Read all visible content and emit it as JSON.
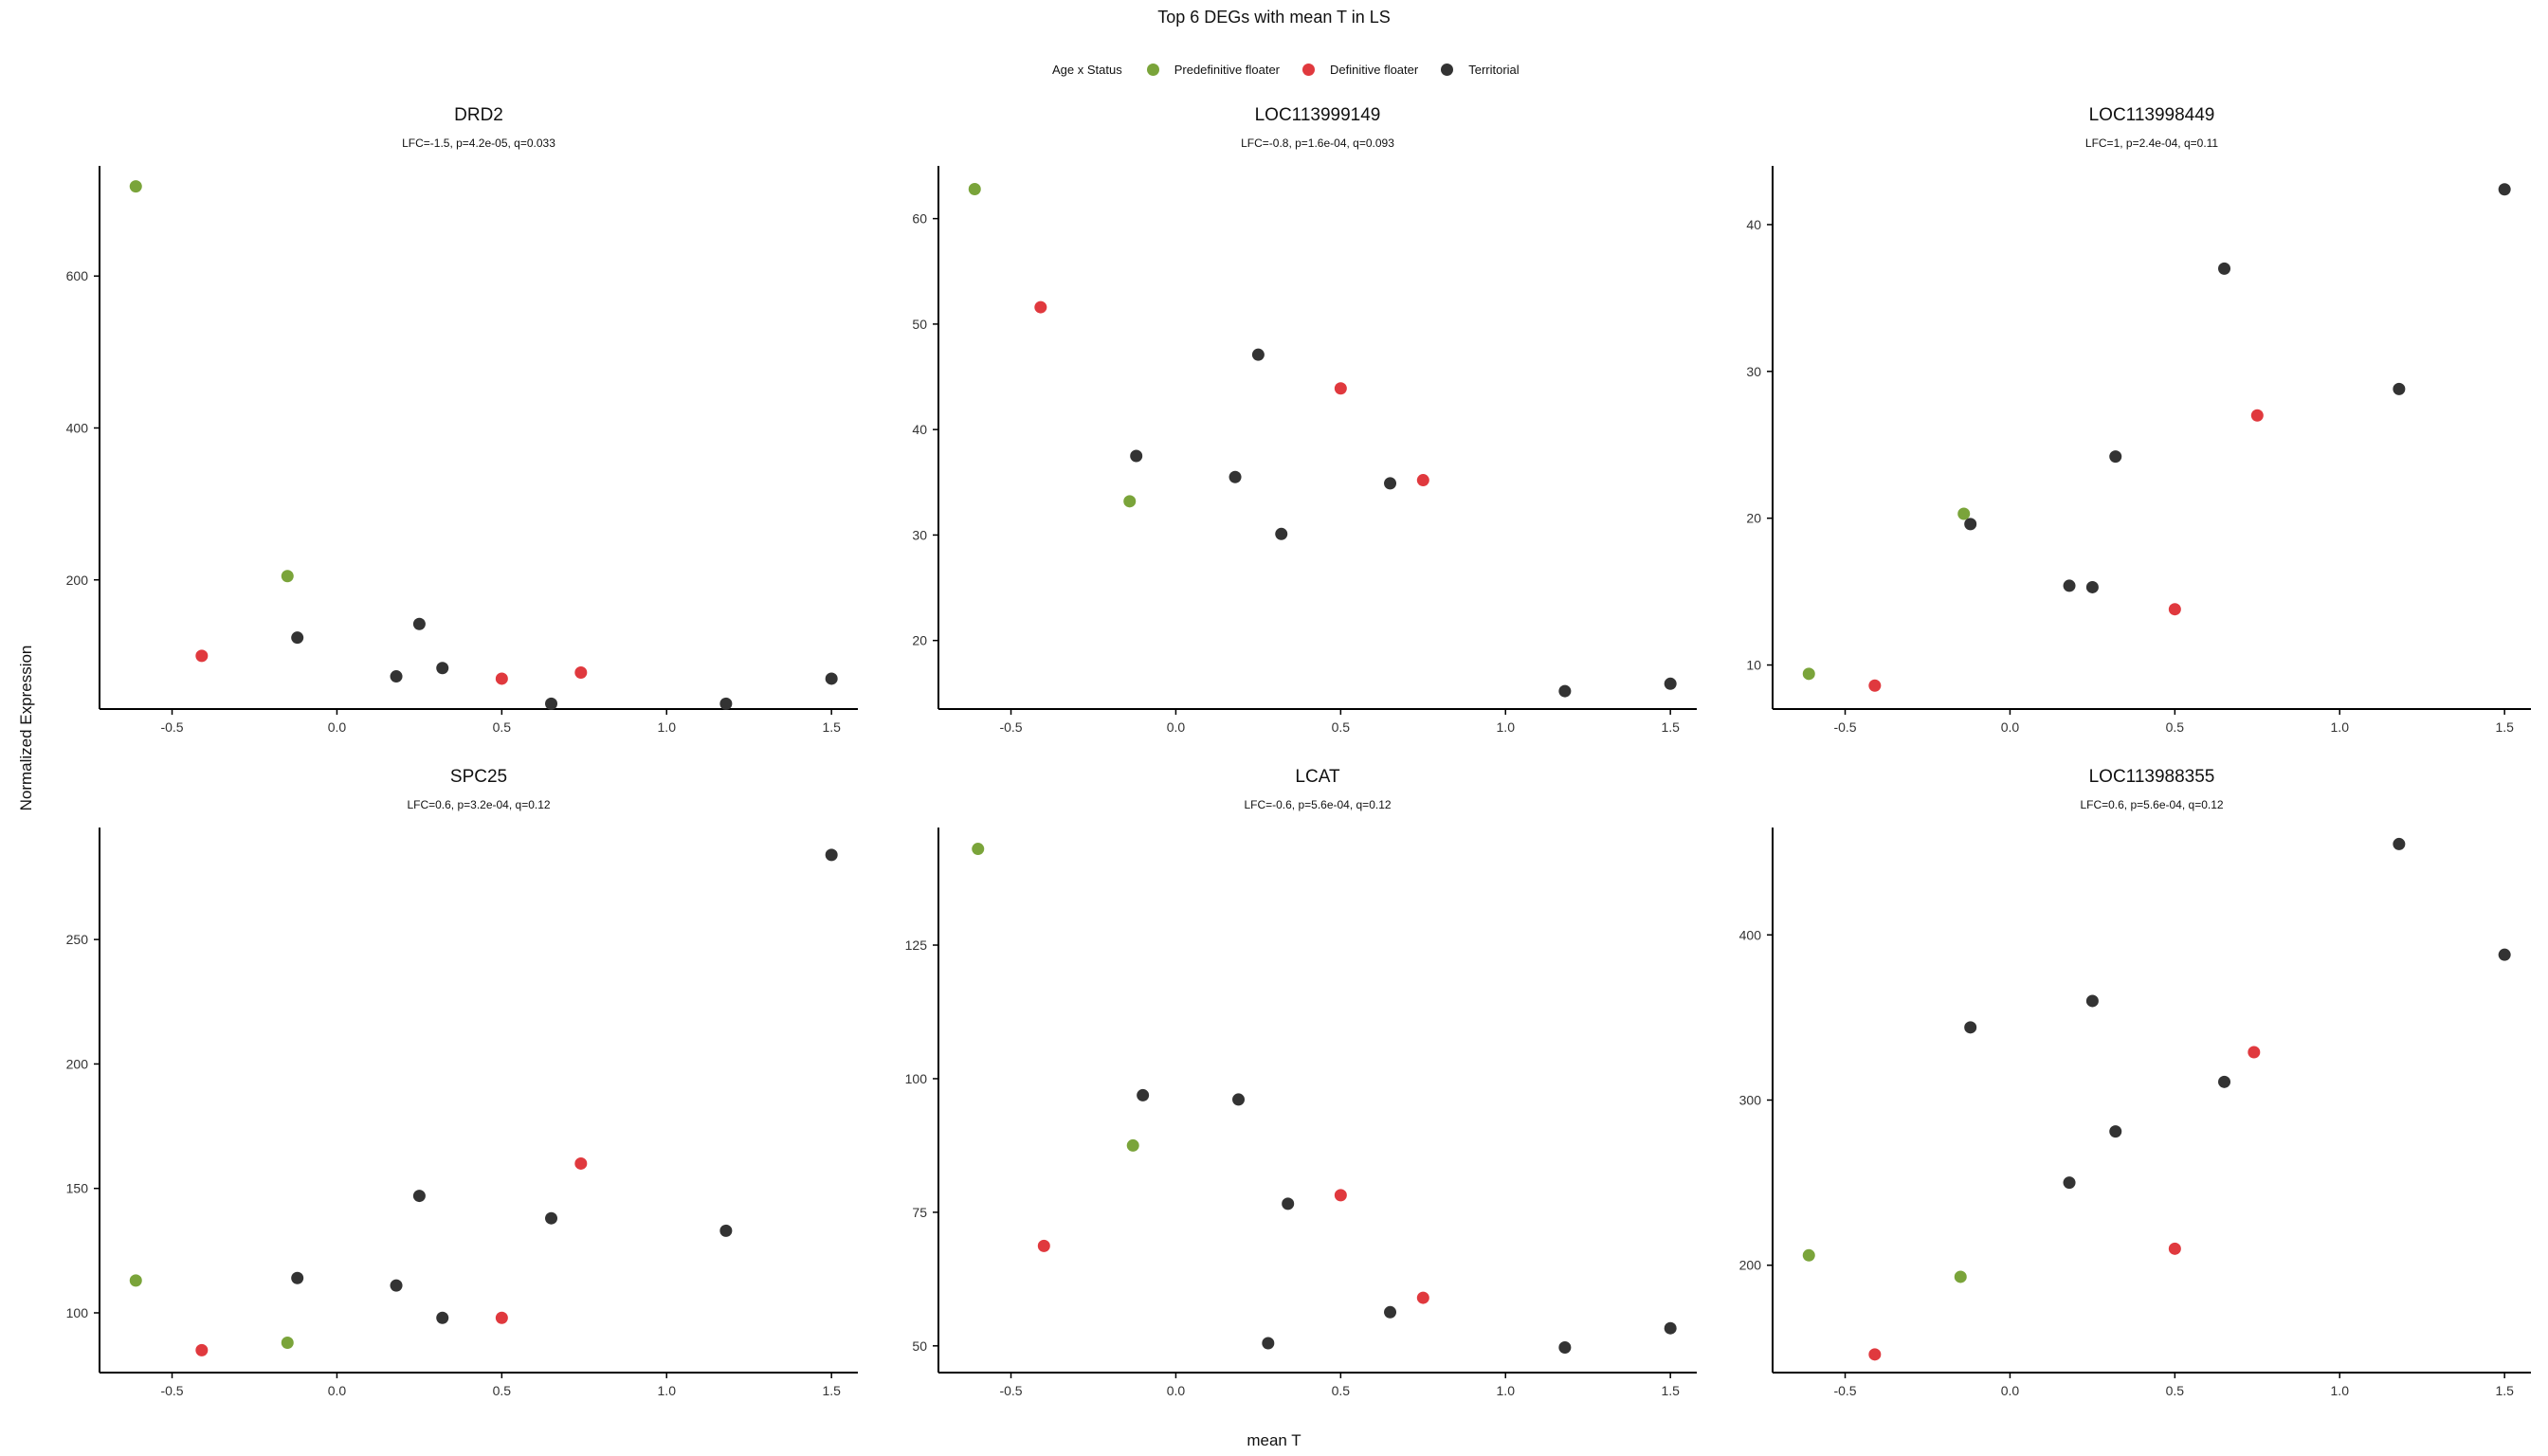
{
  "figure": {
    "title": "Top 6 DEGs with mean T in LS",
    "xlabel": "mean T",
    "ylabel": "Normalized Expression"
  },
  "legend": {
    "title": "Age x Status",
    "entries": [
      {
        "name": "Predefinitive floater",
        "color": "#7AA43A"
      },
      {
        "name": "Definitive floater",
        "color": "#E0393E"
      },
      {
        "name": "Territorial",
        "color": "#333333"
      }
    ]
  },
  "chart_data": [
    {
      "type": "scatter",
      "title": "DRD2",
      "subtitle": "LFC=-1.5, p=4.2e-05, q=0.033",
      "xlim": [
        -0.72,
        1.58
      ],
      "ylim": [
        30,
        745
      ],
      "xticks": [
        -0.5,
        0.0,
        0.5,
        1.0,
        1.5
      ],
      "yticks": [
        200,
        400,
        600
      ],
      "series": [
        {
          "name": "Predefinitive floater",
          "x": [
            -0.61,
            -0.15
          ],
          "y": [
            718,
            205
          ]
        },
        {
          "name": "Definitive floater",
          "x": [
            -0.41,
            0.5,
            0.74
          ],
          "y": [
            100,
            70,
            78
          ]
        },
        {
          "name": "Territorial",
          "x": [
            -0.12,
            0.18,
            0.25,
            0.32,
            0.65,
            1.18,
            1.5
          ],
          "y": [
            124,
            73,
            142,
            84,
            37,
            37,
            70
          ]
        }
      ]
    },
    {
      "type": "scatter",
      "title": "LOC113999149",
      "subtitle": "LFC=-0.8, p=1.6e-04, q=0.093",
      "xlim": [
        -0.72,
        1.58
      ],
      "ylim": [
        13.5,
        65
      ],
      "xticks": [
        -0.5,
        0.0,
        0.5,
        1.0,
        1.5
      ],
      "yticks": [
        20,
        30,
        40,
        50,
        60
      ],
      "series": [
        {
          "name": "Predefinitive floater",
          "x": [
            -0.61,
            -0.14
          ],
          "y": [
            62.8,
            33.2
          ]
        },
        {
          "name": "Definitive floater",
          "x": [
            -0.41,
            0.5,
            0.75
          ],
          "y": [
            51.6,
            43.9,
            35.2
          ]
        },
        {
          "name": "Territorial",
          "x": [
            -0.12,
            0.18,
            0.25,
            0.32,
            0.65,
            1.18,
            1.5
          ],
          "y": [
            37.5,
            35.5,
            47.1,
            30.1,
            34.9,
            15.2,
            15.9
          ]
        }
      ]
    },
    {
      "type": "scatter",
      "title": "LOC113998449",
      "subtitle": "LFC=1, p=2.4e-04, q=0.11",
      "xlim": [
        -0.72,
        1.58
      ],
      "ylim": [
        7.0,
        44.0
      ],
      "xticks": [
        -0.5,
        0.0,
        0.5,
        1.0,
        1.5
      ],
      "yticks": [
        10,
        20,
        30,
        40
      ],
      "series": [
        {
          "name": "Predefinitive floater",
          "x": [
            -0.61,
            -0.14
          ],
          "y": [
            9.4,
            20.3
          ]
        },
        {
          "name": "Definitive floater",
          "x": [
            -0.41,
            0.5,
            0.75
          ],
          "y": [
            8.6,
            13.8,
            27.0
          ]
        },
        {
          "name": "Territorial",
          "x": [
            -0.12,
            0.18,
            0.25,
            0.32,
            0.65,
            1.18,
            1.5
          ],
          "y": [
            19.6,
            15.4,
            15.3,
            24.2,
            37.0,
            28.8,
            42.4
          ]
        }
      ]
    },
    {
      "type": "scatter",
      "title": "SPC25",
      "subtitle": "LFC=0.6, p=3.2e-04, q=0.12",
      "xlim": [
        -0.72,
        1.58
      ],
      "ylim": [
        76,
        295
      ],
      "xticks": [
        -0.5,
        0.0,
        0.5,
        1.0,
        1.5
      ],
      "yticks": [
        100,
        150,
        200,
        250
      ],
      "series": [
        {
          "name": "Predefinitive floater",
          "x": [
            -0.61,
            -0.15
          ],
          "y": [
            113,
            88
          ]
        },
        {
          "name": "Definitive floater",
          "x": [
            -0.41,
            0.5,
            0.74
          ],
          "y": [
            85,
            98,
            160
          ]
        },
        {
          "name": "Territorial",
          "x": [
            -0.12,
            0.18,
            0.25,
            0.32,
            0.65,
            1.18,
            1.5
          ],
          "y": [
            114,
            111,
            147,
            98,
            138,
            133,
            284
          ]
        }
      ]
    },
    {
      "type": "scatter",
      "title": "LCAT",
      "subtitle": "LFC=-0.6, p=5.6e-04, q=0.12",
      "xlim": [
        -0.72,
        1.58
      ],
      "ylim": [
        45,
        147
      ],
      "xticks": [
        -0.5,
        0.0,
        0.5,
        1.0,
        1.5
      ],
      "yticks": [
        50,
        75,
        100,
        125
      ],
      "series": [
        {
          "name": "Predefinitive floater",
          "x": [
            -0.6,
            -0.13
          ],
          "y": [
            143,
            87.5
          ]
        },
        {
          "name": "Definitive floater",
          "x": [
            -0.4,
            0.5,
            0.75
          ],
          "y": [
            68.7,
            78.2,
            59.0
          ]
        },
        {
          "name": "Territorial",
          "x": [
            -0.1,
            0.19,
            0.28,
            0.34,
            0.65,
            1.18,
            1.5
          ],
          "y": [
            96.9,
            96.1,
            50.5,
            76.6,
            56.3,
            49.7,
            53.3
          ]
        }
      ]
    },
    {
      "type": "scatter",
      "title": "LOC113988355",
      "subtitle": "LFC=0.6, p=5.6e-04, q=0.12",
      "xlim": [
        -0.72,
        1.58
      ],
      "ylim": [
        135,
        465
      ],
      "xticks": [
        -0.5,
        0.0,
        0.5,
        1.0,
        1.5
      ],
      "yticks": [
        200,
        300,
        400
      ],
      "series": [
        {
          "name": "Predefinitive floater",
          "x": [
            -0.61,
            -0.15
          ],
          "y": [
            206,
            193
          ]
        },
        {
          "name": "Definitive floater",
          "x": [
            -0.41,
            0.5,
            0.74
          ],
          "y": [
            146,
            210,
            329
          ]
        },
        {
          "name": "Territorial",
          "x": [
            -0.12,
            0.18,
            0.25,
            0.32,
            0.65,
            1.18,
            1.5
          ],
          "y": [
            344,
            250,
            360,
            281,
            311,
            455,
            388
          ]
        }
      ]
    }
  ]
}
